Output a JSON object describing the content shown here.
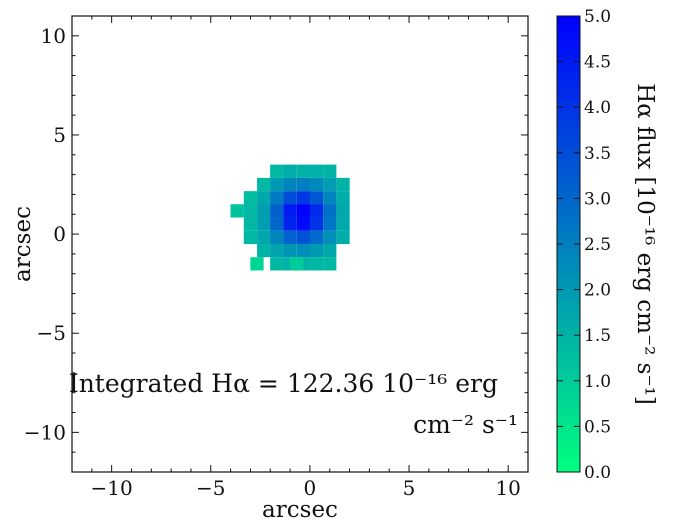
{
  "chart_data": {
    "type": "heatmap",
    "xlabel": "arcsec",
    "ylabel": "arcsec",
    "xlim": [
      -12,
      11
    ],
    "ylim": [
      -12,
      11
    ],
    "x_ticks": [
      -10,
      -5,
      0,
      5,
      10
    ],
    "y_ticks": [
      10,
      5,
      0,
      -5,
      -10
    ],
    "x_tick_labels": [
      "−10",
      "−5",
      "0",
      "5",
      "10"
    ],
    "y_tick_labels": [
      "10",
      "5",
      "0",
      "−5",
      "−10"
    ],
    "pixel_size_arcsec": 0.67,
    "pixels": [
      {
        "x": -0.33,
        "y": 3.17,
        "v": 1.5
      },
      {
        "x": 0.33,
        "y": 3.17,
        "v": 1.5
      },
      {
        "x": 1.0,
        "y": 3.17,
        "v": 1.5
      },
      {
        "x": -1.67,
        "y": 3.17,
        "v": 1.4
      },
      {
        "x": -1.0,
        "y": 3.17,
        "v": 1.6
      },
      {
        "x": -2.33,
        "y": 2.5,
        "v": 1.4
      },
      {
        "x": -1.67,
        "y": 2.5,
        "v": 2.0
      },
      {
        "x": -1.0,
        "y": 2.5,
        "v": 2.4
      },
      {
        "x": -0.33,
        "y": 2.5,
        "v": 2.5
      },
      {
        "x": 0.33,
        "y": 2.5,
        "v": 2.3
      },
      {
        "x": 1.0,
        "y": 2.5,
        "v": 1.9
      },
      {
        "x": 1.67,
        "y": 2.5,
        "v": 1.5
      },
      {
        "x": -3.0,
        "y": 1.83,
        "v": 1.3
      },
      {
        "x": -2.33,
        "y": 1.83,
        "v": 1.7
      },
      {
        "x": -1.67,
        "y": 1.83,
        "v": 2.6
      },
      {
        "x": -1.0,
        "y": 1.83,
        "v": 3.5
      },
      {
        "x": -0.33,
        "y": 1.83,
        "v": 3.9
      },
      {
        "x": 0.33,
        "y": 1.83,
        "v": 3.3
      },
      {
        "x": 1.0,
        "y": 1.83,
        "v": 2.4
      },
      {
        "x": 1.67,
        "y": 1.83,
        "v": 1.6
      },
      {
        "x": -3.67,
        "y": 1.17,
        "v": 1.2
      },
      {
        "x": -3.0,
        "y": 1.17,
        "v": 1.4
      },
      {
        "x": -2.33,
        "y": 1.17,
        "v": 1.9
      },
      {
        "x": -1.67,
        "y": 1.17,
        "v": 3.1
      },
      {
        "x": -1.0,
        "y": 1.17,
        "v": 4.5
      },
      {
        "x": -0.33,
        "y": 1.17,
        "v": 5.0
      },
      {
        "x": 0.33,
        "y": 1.17,
        "v": 4.2
      },
      {
        "x": 1.0,
        "y": 1.17,
        "v": 2.8
      },
      {
        "x": 1.67,
        "y": 1.17,
        "v": 1.7
      },
      {
        "x": -3.0,
        "y": 0.5,
        "v": 1.4
      },
      {
        "x": -2.33,
        "y": 0.5,
        "v": 1.9
      },
      {
        "x": -1.67,
        "y": 0.5,
        "v": 3.0
      },
      {
        "x": -1.0,
        "y": 0.5,
        "v": 4.3
      },
      {
        "x": -0.33,
        "y": 0.5,
        "v": 4.8
      },
      {
        "x": 0.33,
        "y": 0.5,
        "v": 4.0
      },
      {
        "x": 1.0,
        "y": 0.5,
        "v": 2.7
      },
      {
        "x": 1.67,
        "y": 0.5,
        "v": 1.7
      },
      {
        "x": -3.0,
        "y": -0.17,
        "v": 1.4
      },
      {
        "x": -2.33,
        "y": -0.17,
        "v": 1.7
      },
      {
        "x": -1.67,
        "y": -0.17,
        "v": 2.4
      },
      {
        "x": -1.0,
        "y": -0.17,
        "v": 3.1
      },
      {
        "x": -0.33,
        "y": -0.17,
        "v": 3.4
      },
      {
        "x": 0.33,
        "y": -0.17,
        "v": 2.9
      },
      {
        "x": 1.0,
        "y": -0.17,
        "v": 2.2
      },
      {
        "x": 1.67,
        "y": -0.17,
        "v": 1.6
      },
      {
        "x": -2.33,
        "y": -0.83,
        "v": 1.5
      },
      {
        "x": -1.67,
        "y": -0.83,
        "v": 1.8
      },
      {
        "x": -1.0,
        "y": -0.83,
        "v": 2.1
      },
      {
        "x": -0.33,
        "y": -0.83,
        "v": 2.2
      },
      {
        "x": 0.33,
        "y": -0.83,
        "v": 2.0
      },
      {
        "x": 1.0,
        "y": -0.83,
        "v": 1.7
      },
      {
        "x": -1.67,
        "y": -1.5,
        "v": 1.4
      },
      {
        "x": -1.0,
        "y": -1.5,
        "v": 1.5
      },
      {
        "x": -0.33,
        "y": -1.5,
        "v": 1.5
      },
      {
        "x": 0.33,
        "y": -1.5,
        "v": 1.4
      },
      {
        "x": 1.0,
        "y": -1.5,
        "v": 1.4
      },
      {
        "x": -2.67,
        "y": -1.5,
        "v": 0.8
      },
      {
        "x": -0.67,
        "y": -1.5,
        "v": 1.0
      }
    ],
    "colorbar": {
      "label": "Hα flux [10⁻¹⁶ erg cm⁻² s⁻¹]",
      "range": [
        0.0,
        5.0
      ],
      "ticks": [
        "0.0",
        "0.5",
        "1.0",
        "1.5",
        "2.0",
        "2.5",
        "3.0",
        "3.5",
        "4.0",
        "4.5",
        "5.0"
      ],
      "colormap": [
        "#00ff80",
        "#0000ff"
      ]
    },
    "annotation": {
      "line1": "Integrated Hα = 122.36 10⁻¹⁶ erg",
      "line2": "cm⁻² s⁻¹"
    }
  }
}
